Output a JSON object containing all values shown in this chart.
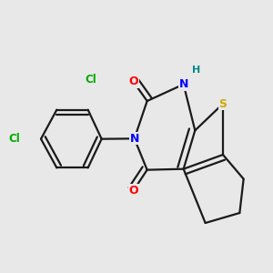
{
  "bg_color": "#e8e8e8",
  "bond_color": "#1a1a1a",
  "atom_colors": {
    "O": "#ff0000",
    "N": "#0000ff",
    "S": "#ccaa00",
    "Cl": "#00aa00",
    "H": "#008888",
    "C": "#1a1a1a"
  },
  "font_size": 9,
  "linewidth": 1.6
}
